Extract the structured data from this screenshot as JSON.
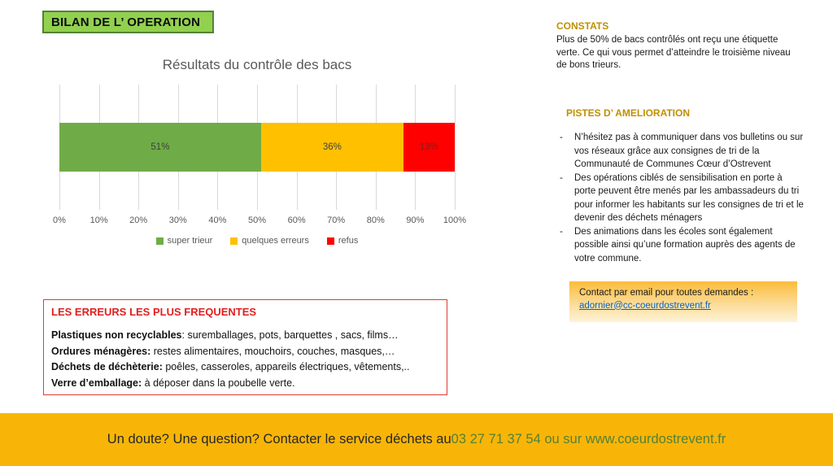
{
  "title_box": {
    "label": "BILAN DE L’ OPERATION"
  },
  "chart_data": {
    "type": "bar",
    "stacked": true,
    "orientation": "horizontal",
    "title": "Résultats du contrôle des bacs",
    "categories": [
      ""
    ],
    "series": [
      {
        "name": "super trieur",
        "values": [
          51
        ],
        "label": "51%",
        "color": "#6FAC47",
        "label_color": "#404040"
      },
      {
        "name": "quelques erreurs",
        "values": [
          36
        ],
        "label": "36%",
        "color": "#FFC000",
        "label_color": "#404040"
      },
      {
        "name": "refus",
        "values": [
          13
        ],
        "label": "13%",
        "color": "#FF0000",
        "label_color": "#7F1D1D"
      }
    ],
    "xlim": [
      0,
      100
    ],
    "x_ticks": [
      "0%",
      "10%",
      "20%",
      "30%",
      "40%",
      "50%",
      "60%",
      "70%",
      "80%",
      "90%",
      "100%"
    ],
    "grid": true,
    "legend_position": "bottom"
  },
  "constats": {
    "heading": "CONSTATS",
    "text": "Plus de 50% de bacs contrôlés ont reçu une étiquette verte. Ce qui vous permet d’atteindre le troisième niveau de bons trieurs."
  },
  "pistes": {
    "heading": "PISTES D’ AMELIORATION",
    "bullet_char": "-",
    "bullets": [
      "N’hésitez pas à communiquer dans vos bulletins ou sur vos réseaux grâce aux consignes de tri de la Communauté de Communes Cœur d’Ostrevent",
      "Des opérations ciblés de sensibilisation en porte à porte peuvent être menés par les ambassadeurs du tri pour informer les habitants sur les consignes de tri et le devenir des déchets ménagers",
      "Des animations dans les écoles sont également possible ainsi qu’une formation auprès des agents de votre commune."
    ]
  },
  "contact_box": {
    "line1": "Contact par email pour toutes demandes :",
    "email": "adornier@cc-coeurdostrevent.fr"
  },
  "errors_box": {
    "heading": "LES ERREURS LES PLUS FREQUENTES",
    "items": [
      {
        "label": "Plastiques non recyclables",
        "text": ": suremballages, pots, barquettes , sacs, films…"
      },
      {
        "label": "Ordures ménagères:",
        "text": " restes alimentaires, mouchoirs, couches, masques,…"
      },
      {
        "label": "Déchets de déchèterie:",
        "text": " poêles, casseroles, appareils électriques, vêtements,.."
      },
      {
        "label": "Verre d’emballage:",
        "text": " à déposer dans la poubelle verte."
      }
    ]
  },
  "banner": {
    "text_dark": "Un doute? Une question? Contacter le service déchets au ",
    "text_green": "03 27 71 37 54 ou sur www.coeurdostrevent.fr"
  },
  "colors": {
    "title_box_bg": "#92D050",
    "title_box_border": "#548235",
    "bar_green": "#6FAC47",
    "bar_yellow": "#FFC000",
    "bar_red": "#FF0000",
    "heading_gold": "#BF9000",
    "error_red": "#E01F1F",
    "link_blue": "#0563C1",
    "banner_bg": "#F8B508",
    "banner_green_text": "#538135",
    "axis_text": "#595959",
    "gridline": "#D9D9D9"
  }
}
